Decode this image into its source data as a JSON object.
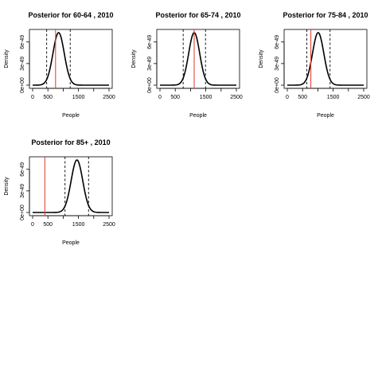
{
  "chart_data": [
    {
      "type": "line",
      "title": "Posterior for 60-64 , 2010",
      "xlabel": "People",
      "ylabel": "Density",
      "xlim": [
        0,
        2500
      ],
      "ylim": [
        0,
        7.3e-49
      ],
      "x_ticks": [
        0,
        500,
        1000,
        1500,
        2000,
        2500
      ],
      "x_tick_labels": [
        "0",
        "500",
        "",
        "1500",
        "",
        "2500"
      ],
      "y_ticks": [
        0,
        3e-49,
        6e-49
      ],
      "y_tick_labels": [
        "0e+00",
        "3e-49",
        "6e-49"
      ],
      "density": {
        "mean": 850,
        "sd": 185,
        "peak": 7.3e-49,
        "x_min": 0,
        "x_max": 2500
      },
      "observed": 750,
      "interval": [
        460,
        1230
      ],
      "colors": {
        "curve": "#000000",
        "observed": "#e8453c",
        "interval": "#000000"
      }
    },
    {
      "type": "line",
      "title": "Posterior for 65-74 , 2010",
      "xlabel": "People",
      "ylabel": "Density",
      "xlim": [
        0,
        2500
      ],
      "ylim": [
        0,
        7.3e-49
      ],
      "x_ticks": [
        0,
        500,
        1000,
        1500,
        2000,
        2500
      ],
      "x_tick_labels": [
        "0",
        "500",
        "",
        "1500",
        "",
        "2500"
      ],
      "y_ticks": [
        0,
        3e-49,
        6e-49
      ],
      "y_tick_labels": [
        "0e+00",
        "3e-49",
        "6e-49"
      ],
      "density": {
        "mean": 1120,
        "sd": 180,
        "peak": 7.3e-49,
        "x_min": 0,
        "x_max": 2500
      },
      "observed": 1120,
      "interval": [
        760,
        1490
      ],
      "colors": {
        "curve": "#000000",
        "observed": "#e8453c",
        "interval": "#000000"
      }
    },
    {
      "type": "line",
      "title": "Posterior for 75-84 , 2010",
      "xlabel": "People",
      "ylabel": "Density",
      "xlim": [
        0,
        2500
      ],
      "ylim": [
        0,
        7.3e-49
      ],
      "x_ticks": [
        0,
        500,
        1000,
        1500,
        2000,
        2500
      ],
      "x_tick_labels": [
        "0",
        "500",
        "",
        "1500",
        "",
        "2500"
      ],
      "y_ticks": [
        0,
        3e-49,
        6e-49
      ],
      "y_tick_labels": [
        "0e+00",
        "3e-49",
        "6e-49"
      ],
      "density": {
        "mean": 1010,
        "sd": 185,
        "peak": 7.3e-49,
        "x_min": 0,
        "x_max": 2500
      },
      "observed": 770,
      "interval": [
        640,
        1400
      ],
      "colors": {
        "curve": "#000000",
        "observed": "#e8453c",
        "interval": "#000000"
      }
    },
    {
      "type": "line",
      "title": "Posterior for 85+ , 2010",
      "xlabel": "People",
      "ylabel": "Density",
      "xlim": [
        0,
        2500
      ],
      "ylim": [
        0,
        7.3e-49
      ],
      "x_ticks": [
        0,
        500,
        1000,
        1500,
        2000,
        2500
      ],
      "x_tick_labels": [
        "0",
        "500",
        "",
        "1500",
        "",
        "2500"
      ],
      "y_ticks": [
        0,
        3e-49,
        6e-49
      ],
      "y_tick_labels": [
        "0e+00",
        "3e-49",
        "6e-49"
      ],
      "density": {
        "mean": 1450,
        "sd": 190,
        "peak": 7.3e-49,
        "x_min": 0,
        "x_max": 2500
      },
      "observed": 400,
      "interval": [
        1060,
        1830
      ],
      "colors": {
        "curve": "#000000",
        "observed": "#e8453c",
        "interval": "#000000"
      }
    }
  ]
}
